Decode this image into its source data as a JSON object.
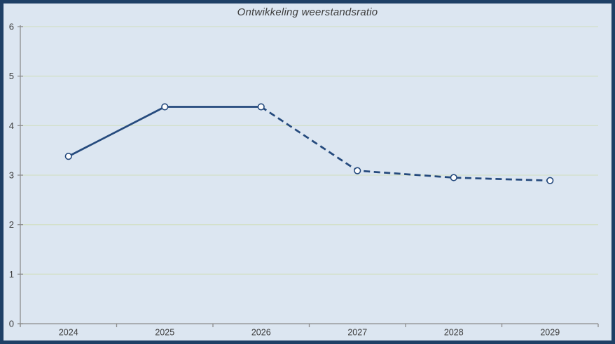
{
  "chart": {
    "title": "Ontwikkeling weerstandsratio"
  },
  "chart_data": {
    "type": "line",
    "title": "Ontwikkeling weerstandsratio",
    "categories": [
      "2024",
      "2025",
      "2026",
      "2027",
      "2028",
      "2029"
    ],
    "series": [
      {
        "values": [
          3.38,
          4.38,
          4.38,
          3.09,
          2.95,
          2.89
        ],
        "solid_until_index": 2,
        "style_note": "solid line 2024-2026, dashed line 2026-2029, open circle markers"
      }
    ],
    "xlabel": "",
    "ylabel": "",
    "ylim": [
      0,
      6
    ],
    "yticks": [
      0,
      1,
      2,
      3,
      4,
      5,
      6
    ],
    "grid": true,
    "legend": false,
    "colors": {
      "frame_border": "#1f4066",
      "background": "#dce6f1",
      "gridline": "#d3e0c8",
      "axis": "#8c8c8c",
      "line": "#254a7d",
      "marker_fill": "#fdfdfe",
      "label_text": "#3d3d3d"
    }
  }
}
